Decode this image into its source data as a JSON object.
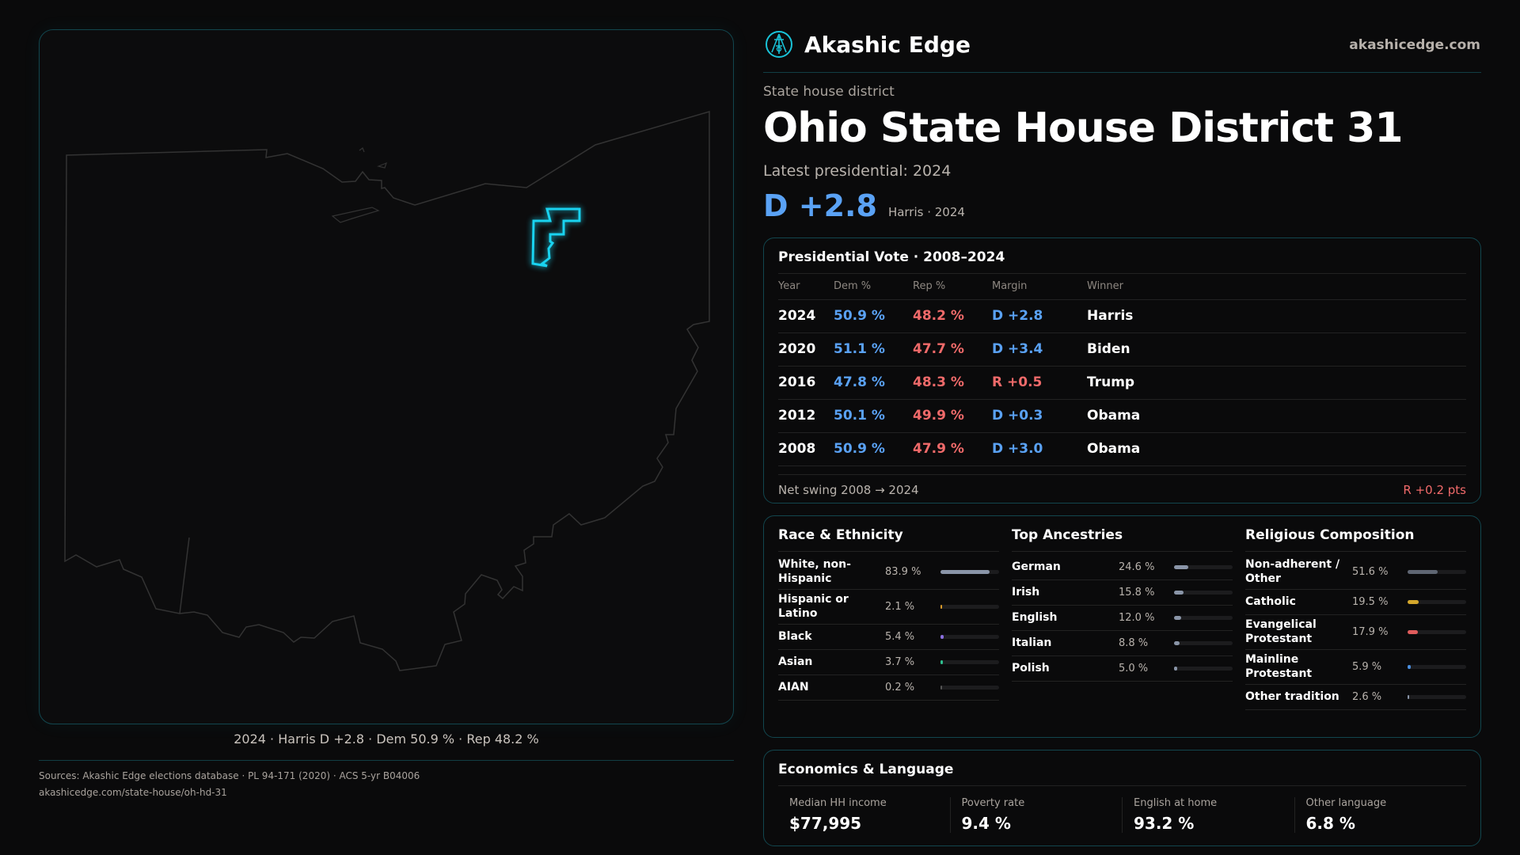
{
  "brand": {
    "name": "Akashic Edge",
    "domain": "akashicedge.com",
    "logo_icon": "akashic-edge-logo"
  },
  "header": {
    "kicker": "State house district",
    "title": "Ohio State House District 31",
    "latest": "Latest presidential: 2024",
    "margin": "D +2.8",
    "margin_sub": "Harris · 2024"
  },
  "map": {
    "caption": "2024 · Harris D +2.8 · Dem 50.9 % · Rep 48.2 %",
    "highlight_color": "#19d3f0"
  },
  "presidential": {
    "title": "Presidential Vote · 2008–2024",
    "columns": [
      "Year",
      "Dem %",
      "Rep %",
      "Margin",
      "Winner"
    ],
    "rows": [
      {
        "year": "2024",
        "dem": "50.9 %",
        "rep": "48.2 %",
        "margin": "D +2.8",
        "party": "D",
        "winner": "Harris"
      },
      {
        "year": "2020",
        "dem": "51.1 %",
        "rep": "47.7 %",
        "margin": "D +3.4",
        "party": "D",
        "winner": "Biden"
      },
      {
        "year": "2016",
        "dem": "47.8 %",
        "rep": "48.3 %",
        "margin": "R +0.5",
        "party": "R",
        "winner": "Trump"
      },
      {
        "year": "2012",
        "dem": "50.1 %",
        "rep": "49.9 %",
        "margin": "D +0.3",
        "party": "D",
        "winner": "Obama"
      },
      {
        "year": "2008",
        "dem": "50.9 %",
        "rep": "47.9 %",
        "margin": "D +3.0",
        "party": "D",
        "winner": "Obama"
      }
    ],
    "swing_label": "Net swing 2008 → 2024",
    "swing_value": "R +0.2 pts"
  },
  "demographics": [
    {
      "title": "Race & Ethnicity",
      "items": [
        {
          "label": "White, non-Hispanic",
          "value": "83.9 %",
          "pct": 83.9,
          "color": "#8a95a8"
        },
        {
          "label": "Hispanic or Latino",
          "value": "2.1 %",
          "pct": 2.1,
          "color": "#d89a2a"
        },
        {
          "label": "Black",
          "value": "5.4 %",
          "pct": 5.4,
          "color": "#8b6fe0"
        },
        {
          "label": "Asian",
          "value": "3.7 %",
          "pct": 3.7,
          "color": "#2fbf8f"
        },
        {
          "label": "AIAN",
          "value": "0.2 %",
          "pct": 0.2,
          "color": "#555"
        }
      ]
    },
    {
      "title": "Top Ancestries",
      "items": [
        {
          "label": "German",
          "value": "24.6 %",
          "pct": 24.6,
          "color": "#8a95a8"
        },
        {
          "label": "Irish",
          "value": "15.8 %",
          "pct": 15.8,
          "color": "#8a95a8"
        },
        {
          "label": "English",
          "value": "12.0 %",
          "pct": 12.0,
          "color": "#8a95a8"
        },
        {
          "label": "Italian",
          "value": "8.8 %",
          "pct": 8.8,
          "color": "#8a95a8"
        },
        {
          "label": "Polish",
          "value": "5.0 %",
          "pct": 5.0,
          "color": "#8a95a8"
        }
      ]
    },
    {
      "title": "Religious Composition",
      "items": [
        {
          "label": "Non-adherent / Other",
          "value": "51.6 %",
          "pct": 51.6,
          "color": "#5f6673"
        },
        {
          "label": "Catholic",
          "value": "19.5 %",
          "pct": 19.5,
          "color": "#d4a72c"
        },
        {
          "label": "Evangelical Protestant",
          "value": "17.9 %",
          "pct": 17.9,
          "color": "#e05c5c"
        },
        {
          "label": "Mainline Protestant",
          "value": "5.9 %",
          "pct": 5.9,
          "color": "#4a8fe0"
        },
        {
          "label": "Other tradition",
          "value": "2.6 %",
          "pct": 2.6,
          "color": "#8a95a8"
        }
      ]
    }
  ],
  "economics": {
    "title": "Economics & Language",
    "items": [
      {
        "label": "Median HH income",
        "value": "$77,995"
      },
      {
        "label": "Poverty rate",
        "value": "9.4 %"
      },
      {
        "label": "English at home",
        "value": "93.2 %"
      },
      {
        "label": "Other language",
        "value": "6.8 %"
      }
    ]
  },
  "sources": {
    "line1": "Sources: Akashic Edge elections database · PL 94-171 (2020) · ACS 5-yr B04006",
    "line2": "akashicedge.com/state-house/oh-hd-31"
  }
}
